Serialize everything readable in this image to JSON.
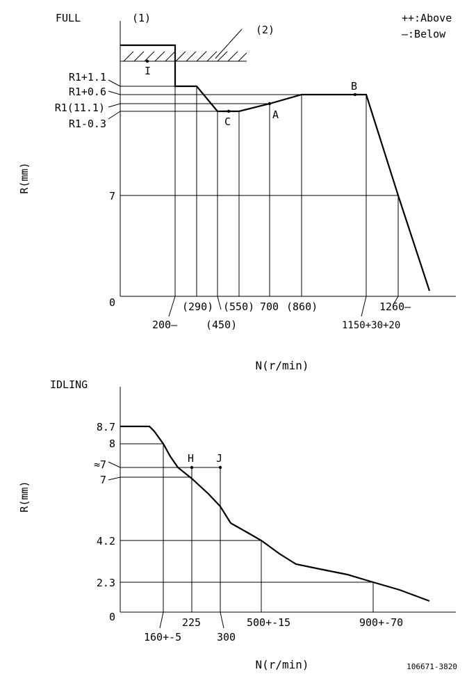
{
  "full": {
    "title": "FULL",
    "callout_1": "(1)",
    "callout_2": "(2)",
    "legend_above": "++:Above",
    "legend_below": "—:Below",
    "y_axis_label": "R(mm)",
    "x_axis_label": "N(r/min)",
    "y_labels": {
      "r1_plus_1_1": "R1+1.1",
      "r1_plus_0_6": "R1+0.6",
      "r1": "R1(11.1)",
      "r1_minus_0_3": "R1-0.3",
      "seven": "7",
      "zero": "0"
    },
    "x_labels": {
      "n200": "200—",
      "n290": "(290)",
      "n450": "(450)",
      "n550": "(550)",
      "n700": "700",
      "n860": "(860)",
      "n1150": "1150+30+20",
      "n1260": "1260—"
    },
    "points": {
      "I": "I",
      "C": "C",
      "A": "A",
      "B": "B"
    }
  },
  "idling": {
    "title": "IDLING",
    "y_axis_label": "R(mm)",
    "x_axis_label": "N(r/min)",
    "y_labels": {
      "r8_7": "8.7",
      "r8": "8",
      "approx7": "≈7",
      "r7": "7",
      "r4_2": "4.2",
      "r2_3": "2.3",
      "zero": "0"
    },
    "x_labels": {
      "n160": "160+-5",
      "n225": "225",
      "n300": "300",
      "n500": "500+-15",
      "n900": "900+-70"
    },
    "points": {
      "H": "H",
      "J": "J"
    }
  },
  "part_number": "106671-3820"
}
